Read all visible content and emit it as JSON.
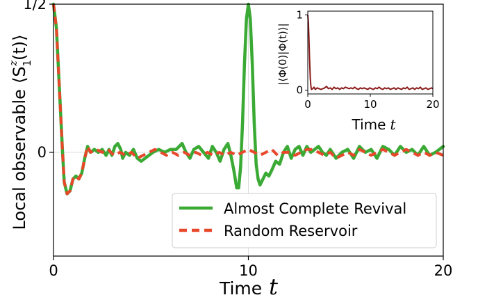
{
  "chart_data": [
    {
      "type": "line",
      "xlabel_text": "Time",
      "xlabel_var": "t",
      "ylabel_text": "Local observable",
      "ylabel_symbol": "⟨S",
      "ylabel_sub": "1",
      "ylabel_sup": "z",
      "ylabel_tail": "(t)⟩",
      "xlim": [
        0,
        20
      ],
      "ylim": [
        -0.35,
        0.5
      ],
      "x_ticks": [
        {
          "value": 0,
          "label": "0"
        },
        {
          "value": 10,
          "label": "10"
        },
        {
          "value": 20,
          "label": "20"
        }
      ],
      "y_ticks": [
        {
          "value": 0.5,
          "label": "1/2"
        },
        {
          "value": 0,
          "label": "0"
        }
      ],
      "grid": true,
      "legend_position": "bottom-right",
      "series": [
        {
          "name": "Almost Complete Revival",
          "color": "#3aaa35",
          "dash": "solid",
          "points": [
            [
              0,
              0.5
            ],
            [
              0.15,
              0.42
            ],
            [
              0.3,
              0.22
            ],
            [
              0.45,
              0.02
            ],
            [
              0.55,
              -0.1
            ],
            [
              0.7,
              -0.14
            ],
            [
              0.85,
              -0.13
            ],
            [
              1.0,
              -0.09
            ],
            [
              1.15,
              -0.08
            ],
            [
              1.3,
              -0.09
            ],
            [
              1.45,
              -0.07
            ],
            [
              1.6,
              -0.02
            ],
            [
              1.75,
              0.02
            ],
            [
              1.9,
              0.0
            ],
            [
              2.1,
              0.01
            ],
            [
              2.3,
              0.0
            ],
            [
              2.5,
              0.01
            ],
            [
              2.7,
              -0.01
            ],
            [
              2.85,
              0.01
            ],
            [
              3.0,
              -0.01
            ],
            [
              3.15,
              0.02
            ],
            [
              3.3,
              0.03
            ],
            [
              3.45,
              0.01
            ],
            [
              3.55,
              -0.02
            ],
            [
              3.7,
              0.0
            ],
            [
              3.9,
              -0.01
            ],
            [
              4.1,
              0.01
            ],
            [
              4.3,
              -0.02
            ],
            [
              4.5,
              -0.03
            ],
            [
              4.7,
              -0.02
            ],
            [
              4.9,
              -0.01
            ],
            [
              5.1,
              0.0
            ],
            [
              5.4,
              0.01
            ],
            [
              5.7,
              0.0
            ],
            [
              6.0,
              0.01
            ],
            [
              6.3,
              0.01
            ],
            [
              6.6,
              0.03
            ],
            [
              6.8,
              0.0
            ],
            [
              7.0,
              -0.02
            ],
            [
              7.2,
              0.01
            ],
            [
              7.45,
              0.02
            ],
            [
              7.7,
              0.0
            ],
            [
              7.95,
              -0.02
            ],
            [
              8.15,
              0.02
            ],
            [
              8.35,
              0.0
            ],
            [
              8.55,
              -0.03
            ],
            [
              8.75,
              0.01
            ],
            [
              8.95,
              0.03
            ],
            [
              9.1,
              -0.01
            ],
            [
              9.25,
              -0.06
            ],
            [
              9.4,
              -0.12
            ],
            [
              9.5,
              -0.12
            ],
            [
              9.6,
              -0.05
            ],
            [
              9.7,
              0.1
            ],
            [
              9.8,
              0.3
            ],
            [
              9.9,
              0.45
            ],
            [
              10.0,
              0.5
            ],
            [
              10.1,
              0.45
            ],
            [
              10.2,
              0.3
            ],
            [
              10.3,
              0.1
            ],
            [
              10.4,
              -0.04
            ],
            [
              10.5,
              -0.09
            ],
            [
              10.6,
              -0.11
            ],
            [
              10.75,
              -0.09
            ],
            [
              10.9,
              -0.07
            ],
            [
              11.05,
              -0.08
            ],
            [
              11.2,
              -0.06
            ],
            [
              11.4,
              -0.03
            ],
            [
              11.6,
              -0.04
            ],
            [
              11.8,
              0.0
            ],
            [
              12.0,
              0.02
            ],
            [
              12.2,
              -0.02
            ],
            [
              12.4,
              0.01
            ],
            [
              12.6,
              0.02
            ],
            [
              12.8,
              -0.01
            ],
            [
              13.0,
              0.02
            ],
            [
              13.2,
              0.0
            ],
            [
              13.4,
              0.01
            ],
            [
              13.6,
              0.02
            ],
            [
              13.8,
              0.0
            ],
            [
              14.0,
              -0.01
            ],
            [
              14.2,
              0.01
            ],
            [
              14.5,
              -0.02
            ],
            [
              14.8,
              0.0
            ],
            [
              15.1,
              0.01
            ],
            [
              15.4,
              -0.02
            ],
            [
              15.7,
              0.02
            ],
            [
              16.0,
              0.0
            ],
            [
              16.3,
              0.01
            ],
            [
              16.6,
              -0.02
            ],
            [
              16.9,
              0.02
            ],
            [
              17.2,
              0.01
            ],
            [
              17.5,
              -0.01
            ],
            [
              17.8,
              0.02
            ],
            [
              18.1,
              0.0
            ],
            [
              18.4,
              0.01
            ],
            [
              18.7,
              -0.01
            ],
            [
              19.0,
              0.02
            ],
            [
              19.3,
              -0.01
            ],
            [
              19.6,
              0.0
            ],
            [
              20.0,
              0.02
            ]
          ]
        },
        {
          "name": "Random Reservoir",
          "color": "#e8472a",
          "dash": "dashed",
          "points": [
            [
              0,
              0.5
            ],
            [
              0.15,
              0.42
            ],
            [
              0.3,
              0.22
            ],
            [
              0.45,
              0.02
            ],
            [
              0.55,
              -0.1
            ],
            [
              0.7,
              -0.14
            ],
            [
              0.85,
              -0.13
            ],
            [
              1.0,
              -0.09
            ],
            [
              1.15,
              -0.08
            ],
            [
              1.3,
              -0.09
            ],
            [
              1.45,
              -0.07
            ],
            [
              1.6,
              -0.02
            ],
            [
              1.75,
              0.02
            ],
            [
              1.9,
              0.0
            ],
            [
              2.2,
              0.01
            ],
            [
              2.5,
              0.0
            ],
            [
              2.8,
              0.01
            ],
            [
              3.1,
              -0.01
            ],
            [
              3.4,
              0.0
            ],
            [
              3.7,
              -0.01
            ],
            [
              4.0,
              0.0
            ],
            [
              4.3,
              -0.02
            ],
            [
              4.6,
              -0.01
            ],
            [
              4.9,
              0.0
            ],
            [
              5.2,
              0.01
            ],
            [
              5.5,
              0.0
            ],
            [
              5.8,
              -0.01
            ],
            [
              6.1,
              0.0
            ],
            [
              6.4,
              -0.01
            ],
            [
              6.7,
              0.0
            ],
            [
              7.0,
              -0.01
            ],
            [
              7.3,
              0.0
            ],
            [
              7.6,
              -0.01
            ],
            [
              7.9,
              0.0
            ],
            [
              8.2,
              -0.01
            ],
            [
              8.5,
              0.0
            ],
            [
              8.8,
              -0.01
            ],
            [
              9.1,
              0.0
            ],
            [
              9.4,
              -0.01
            ],
            [
              9.7,
              0.0
            ],
            [
              10.0,
              0.01
            ],
            [
              10.3,
              0.0
            ],
            [
              10.6,
              -0.01
            ],
            [
              10.9,
              0.0
            ],
            [
              11.2,
              0.01
            ],
            [
              11.5,
              -0.01
            ],
            [
              11.8,
              0.0
            ],
            [
              12.1,
              0.0
            ],
            [
              12.4,
              -0.01
            ],
            [
              12.7,
              0.0
            ],
            [
              13.0,
              0.01
            ],
            [
              13.3,
              0.01
            ],
            [
              13.6,
              0.0
            ],
            [
              13.9,
              -0.01
            ],
            [
              14.2,
              0.0
            ],
            [
              14.5,
              -0.02
            ],
            [
              14.8,
              -0.01
            ],
            [
              15.1,
              0.0
            ],
            [
              15.4,
              -0.01
            ],
            [
              15.7,
              0.01
            ],
            [
              16.0,
              0.0
            ],
            [
              16.3,
              -0.01
            ],
            [
              16.6,
              0.0
            ],
            [
              16.9,
              0.01
            ],
            [
              17.2,
              0.0
            ],
            [
              17.5,
              -0.01
            ],
            [
              17.8,
              0.0
            ],
            [
              18.1,
              0.01
            ],
            [
              18.4,
              0.0
            ],
            [
              18.7,
              -0.01
            ],
            [
              19.0,
              0.0
            ],
            [
              19.3,
              -0.01
            ],
            [
              19.6,
              0.0
            ],
            [
              20.0,
              -0.01
            ]
          ]
        }
      ]
    },
    {
      "type": "line",
      "xlabel_text": "Time",
      "xlabel_var": "t",
      "ylabel": "|⟨Φ(0)|Φ(t)⟩|",
      "xlim": [
        0,
        20
      ],
      "ylim": [
        -0.05,
        1.05
      ],
      "x_ticks": [
        {
          "value": 0,
          "label": "0"
        },
        {
          "value": 10,
          "label": "10"
        },
        {
          "value": 20,
          "label": "20"
        }
      ],
      "y_ticks": [
        {
          "value": 0,
          "label": "0"
        },
        {
          "value": 1,
          "label": "1"
        }
      ],
      "grid": false,
      "series": [
        {
          "color": "#8b1a1a",
          "points": [
            [
              0,
              1.0
            ],
            [
              0.1,
              0.9
            ],
            [
              0.2,
              0.65
            ],
            [
              0.3,
              0.38
            ],
            [
              0.4,
              0.16
            ],
            [
              0.5,
              0.05
            ],
            [
              0.6,
              0.01
            ],
            [
              0.8,
              0.02
            ],
            [
              1.0,
              0.04
            ],
            [
              1.2,
              0.01
            ],
            [
              1.5,
              0.03
            ],
            [
              1.8,
              0.02
            ],
            [
              2.1,
              0.01
            ],
            [
              2.4,
              0.02
            ],
            [
              2.7,
              0.03
            ],
            [
              3.0,
              0.05
            ],
            [
              3.3,
              0.02
            ],
            [
              3.6,
              0.03
            ],
            [
              3.9,
              0.01
            ],
            [
              4.2,
              0.04
            ],
            [
              4.5,
              0.02
            ],
            [
              4.8,
              0.03
            ],
            [
              5.1,
              0.01
            ],
            [
              5.4,
              0.03
            ],
            [
              5.7,
              0.02
            ],
            [
              6.0,
              0.04
            ],
            [
              6.3,
              0.03
            ],
            [
              6.6,
              0.02
            ],
            [
              6.9,
              0.03
            ],
            [
              7.2,
              0.02
            ],
            [
              7.5,
              0.04
            ],
            [
              7.8,
              0.02
            ],
            [
              8.1,
              0.01
            ],
            [
              8.4,
              0.03
            ],
            [
              8.7,
              0.02
            ],
            [
              9.0,
              0.03
            ],
            [
              9.3,
              0.02
            ],
            [
              9.6,
              0.01
            ],
            [
              9.9,
              0.03
            ],
            [
              10.2,
              0.02
            ],
            [
              10.5,
              0.01
            ],
            [
              10.8,
              0.03
            ],
            [
              11.1,
              0.02
            ],
            [
              11.4,
              0.04
            ],
            [
              11.7,
              0.02
            ],
            [
              12.0,
              0.01
            ],
            [
              12.3,
              0.03
            ],
            [
              12.6,
              0.02
            ],
            [
              12.9,
              0.03
            ],
            [
              13.2,
              0.01
            ],
            [
              13.5,
              0.02
            ],
            [
              13.8,
              0.03
            ],
            [
              14.1,
              0.01
            ],
            [
              14.4,
              0.03
            ],
            [
              14.7,
              0.02
            ],
            [
              15.0,
              0.01
            ],
            [
              15.3,
              0.03
            ],
            [
              15.6,
              0.02
            ],
            [
              15.9,
              0.04
            ],
            [
              16.2,
              0.01
            ],
            [
              16.5,
              0.02
            ],
            [
              16.8,
              0.03
            ],
            [
              17.1,
              0.01
            ],
            [
              17.4,
              0.03
            ],
            [
              17.7,
              0.02
            ],
            [
              18.0,
              0.04
            ],
            [
              18.3,
              0.01
            ],
            [
              18.6,
              0.02
            ],
            [
              18.9,
              0.03
            ],
            [
              19.2,
              0.01
            ],
            [
              19.5,
              0.02
            ],
            [
              19.8,
              0.03
            ],
            [
              20.0,
              0.02
            ]
          ]
        }
      ]
    }
  ]
}
